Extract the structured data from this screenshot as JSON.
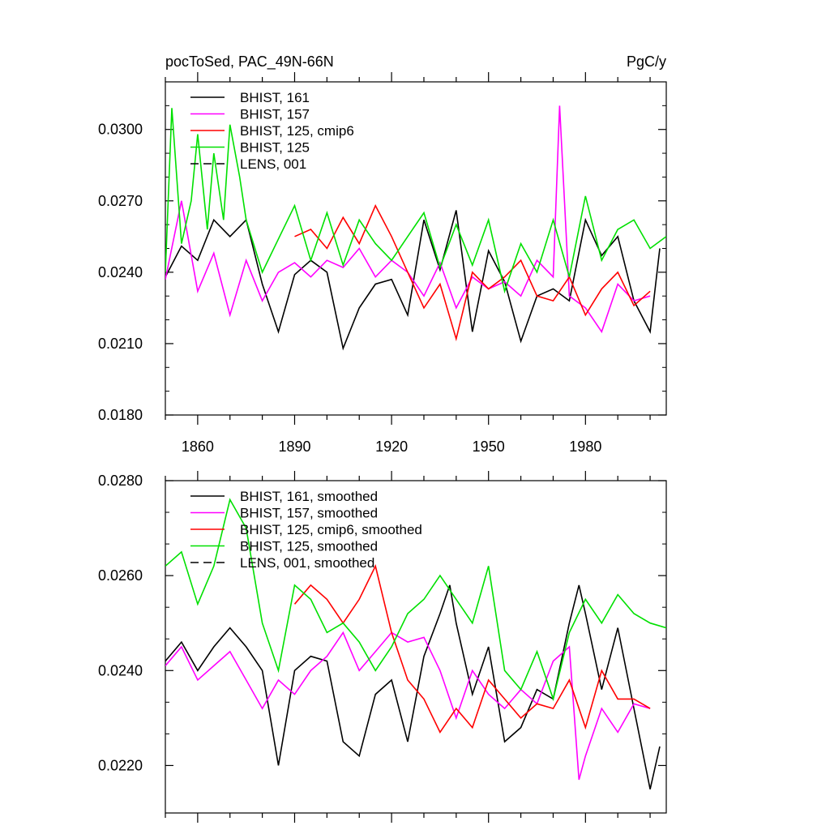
{
  "chart_data": [
    {
      "type": "line",
      "title": "pocToSed, PAC_49N-66N",
      "units": "PgC/y",
      "xlim": [
        1850,
        2005
      ],
      "ylim": [
        0.018,
        0.032
      ],
      "yticks": [
        "0.0180",
        "0.0210",
        "0.0240",
        "0.0270",
        "0.0300"
      ],
      "xticks": [
        "1860",
        "1890",
        "1920",
        "1950",
        "1980"
      ],
      "legend_position": "top-left",
      "series": [
        {
          "name": "BHIST, 161",
          "color": "#000000",
          "dash": "solid",
          "x": [
            1850,
            1855,
            1860,
            1865,
            1870,
            1875,
            1880,
            1885,
            1890,
            1895,
            1900,
            1905,
            1910,
            1915,
            1920,
            1925,
            1930,
            1935,
            1940,
            1945,
            1950,
            1955,
            1960,
            1965,
            1970,
            1975,
            1980,
            1985,
            1990,
            1995,
            2000,
            2003
          ],
          "values": [
            0.0238,
            0.0251,
            0.0245,
            0.0262,
            0.0255,
            0.0262,
            0.0235,
            0.0215,
            0.0239,
            0.0245,
            0.024,
            0.0208,
            0.0225,
            0.0235,
            0.0237,
            0.0222,
            0.0262,
            0.0241,
            0.0266,
            0.0215,
            0.0249,
            0.0236,
            0.0211,
            0.023,
            0.0233,
            0.0228,
            0.0262,
            0.0247,
            0.0255,
            0.0228,
            0.0215,
            0.025
          ]
        },
        {
          "name": "BHIST, 157",
          "color": "#ff00ff",
          "dash": "solid",
          "x": [
            1850,
            1855,
            1860,
            1865,
            1870,
            1875,
            1880,
            1885,
            1890,
            1895,
            1900,
            1905,
            1910,
            1915,
            1920,
            1925,
            1930,
            1935,
            1940,
            1945,
            1950,
            1955,
            1960,
            1965,
            1970,
            1972,
            1975,
            1980,
            1985,
            1990,
            1995,
            2000
          ],
          "values": [
            0.0237,
            0.027,
            0.0232,
            0.0248,
            0.0222,
            0.0245,
            0.0228,
            0.024,
            0.0244,
            0.0238,
            0.0245,
            0.0242,
            0.025,
            0.0238,
            0.0245,
            0.024,
            0.023,
            0.0244,
            0.0225,
            0.0238,
            0.0233,
            0.0236,
            0.023,
            0.0245,
            0.0238,
            0.031,
            0.023,
            0.0225,
            0.0215,
            0.0235,
            0.0228,
            0.023
          ]
        },
        {
          "name": "BHIST, 125, cmip6",
          "color": "#ff0000",
          "dash": "solid",
          "x": [
            1890,
            1895,
            1900,
            1905,
            1910,
            1915,
            1920,
            1925,
            1930,
            1935,
            1940,
            1945,
            1950,
            1955,
            1960,
            1965,
            1970,
            1975,
            1980,
            1985,
            1990,
            1995,
            2000
          ],
          "values": [
            0.0255,
            0.0258,
            0.025,
            0.0263,
            0.0252,
            0.0268,
            0.0255,
            0.024,
            0.0225,
            0.0235,
            0.0212,
            0.024,
            0.0233,
            0.0238,
            0.0245,
            0.023,
            0.0228,
            0.0238,
            0.0222,
            0.0233,
            0.024,
            0.0226,
            0.0232
          ]
        },
        {
          "name": "BHIST, 125",
          "color": "#00e000",
          "dash": "solid",
          "x": [
            1850,
            1852,
            1855,
            1858,
            1860,
            1863,
            1865,
            1868,
            1870,
            1873,
            1875,
            1880,
            1885,
            1890,
            1895,
            1900,
            1905,
            1910,
            1915,
            1920,
            1925,
            1930,
            1935,
            1940,
            1945,
            1950,
            1955,
            1960,
            1965,
            1970,
            1975,
            1980,
            1985,
            1990,
            1995,
            2000,
            2005
          ],
          "values": [
            0.024,
            0.0309,
            0.0252,
            0.027,
            0.0298,
            0.0258,
            0.029,
            0.0262,
            0.0302,
            0.028,
            0.0262,
            0.024,
            0.0254,
            0.0268,
            0.0245,
            0.0265,
            0.0243,
            0.0262,
            0.0252,
            0.0245,
            0.0255,
            0.0265,
            0.0242,
            0.026,
            0.0243,
            0.0262,
            0.0232,
            0.0252,
            0.024,
            0.0262,
            0.0238,
            0.0272,
            0.0245,
            0.0258,
            0.0262,
            0.025,
            0.0255
          ]
        },
        {
          "name": "LENS, 001",
          "color": "#000000",
          "dash": "dashed",
          "x": [],
          "values": []
        }
      ]
    },
    {
      "type": "line",
      "title": "",
      "xlim": [
        1850,
        2005
      ],
      "ylim": [
        0.021,
        0.028
      ],
      "yticks": [
        "0.0220",
        "0.0240",
        "0.0260",
        "0.0280"
      ],
      "xticks": [],
      "legend_position": "top-left",
      "series": [
        {
          "name": "BHIST, 161, smoothed",
          "color": "#000000",
          "dash": "solid",
          "x": [
            1850,
            1855,
            1860,
            1865,
            1870,
            1875,
            1880,
            1883,
            1885,
            1890,
            1895,
            1900,
            1905,
            1910,
            1915,
            1920,
            1925,
            1930,
            1935,
            1938,
            1940,
            1945,
            1950,
            1955,
            1960,
            1965,
            1970,
            1975,
            1978,
            1980,
            1985,
            1990,
            1995,
            2000,
            2003
          ],
          "values": [
            0.0242,
            0.0246,
            0.024,
            0.0245,
            0.0249,
            0.0245,
            0.024,
            0.0228,
            0.022,
            0.024,
            0.0243,
            0.0242,
            0.0225,
            0.0222,
            0.0235,
            0.0238,
            0.0225,
            0.0243,
            0.0252,
            0.0258,
            0.025,
            0.0235,
            0.0245,
            0.0225,
            0.0228,
            0.0236,
            0.0234,
            0.025,
            0.0258,
            0.0252,
            0.0236,
            0.0249,
            0.0232,
            0.0215,
            0.0224
          ]
        },
        {
          "name": "BHIST, 157, smoothed",
          "color": "#ff00ff",
          "dash": "solid",
          "x": [
            1850,
            1855,
            1860,
            1865,
            1870,
            1875,
            1880,
            1885,
            1890,
            1895,
            1900,
            1905,
            1910,
            1915,
            1920,
            1925,
            1930,
            1935,
            1940,
            1945,
            1950,
            1955,
            1960,
            1965,
            1970,
            1975,
            1978,
            1980,
            1985,
            1990,
            1995,
            2000
          ],
          "values": [
            0.0241,
            0.0245,
            0.0238,
            0.0241,
            0.0244,
            0.0238,
            0.0232,
            0.0238,
            0.0235,
            0.024,
            0.0243,
            0.0248,
            0.024,
            0.0244,
            0.0248,
            0.0246,
            0.0247,
            0.024,
            0.023,
            0.024,
            0.0235,
            0.0232,
            0.0236,
            0.0233,
            0.0242,
            0.0245,
            0.0217,
            0.0222,
            0.0232,
            0.0227,
            0.0233,
            0.0232
          ]
        },
        {
          "name": "BHIST, 125, cmip6, smoothed",
          "color": "#ff0000",
          "dash": "solid",
          "x": [
            1890,
            1895,
            1900,
            1905,
            1910,
            1915,
            1920,
            1925,
            1930,
            1935,
            1940,
            1945,
            1950,
            1955,
            1960,
            1965,
            1970,
            1975,
            1980,
            1985,
            1990,
            1995,
            2000
          ],
          "values": [
            0.0254,
            0.0258,
            0.0255,
            0.025,
            0.0255,
            0.0262,
            0.0248,
            0.0238,
            0.0234,
            0.0227,
            0.0232,
            0.0228,
            0.0238,
            0.0234,
            0.023,
            0.0233,
            0.0232,
            0.0238,
            0.0228,
            0.024,
            0.0234,
            0.0234,
            0.0232
          ]
        },
        {
          "name": "BHIST, 125, smoothed",
          "color": "#00e000",
          "dash": "solid",
          "x": [
            1850,
            1855,
            1860,
            1865,
            1870,
            1875,
            1880,
            1885,
            1890,
            1895,
            1900,
            1905,
            1910,
            1915,
            1920,
            1925,
            1930,
            1935,
            1940,
            1945,
            1950,
            1955,
            1960,
            1965,
            1970,
            1975,
            1980,
            1985,
            1990,
            1995,
            2000,
            2005
          ],
          "values": [
            0.0262,
            0.0265,
            0.0254,
            0.0262,
            0.0276,
            0.027,
            0.025,
            0.024,
            0.0258,
            0.0255,
            0.0248,
            0.025,
            0.0246,
            0.024,
            0.0245,
            0.0252,
            0.0255,
            0.026,
            0.0255,
            0.025,
            0.0262,
            0.024,
            0.0236,
            0.0244,
            0.0234,
            0.0248,
            0.0255,
            0.025,
            0.0256,
            0.0252,
            0.025,
            0.0249
          ]
        },
        {
          "name": "LENS, 001, smoothed",
          "color": "#000000",
          "dash": "dashed",
          "x": [],
          "values": []
        }
      ]
    }
  ]
}
